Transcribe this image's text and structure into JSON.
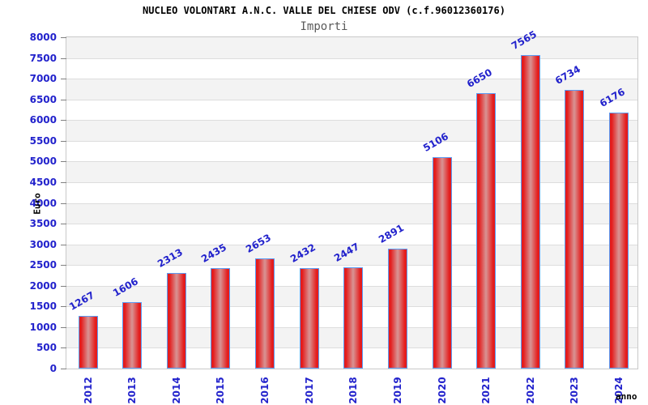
{
  "chart_data": {
    "type": "bar",
    "title": "NUCLEO VOLONTARI A.N.C. VALLE DEL CHIESE ODV (c.f.96012360176)",
    "subtitle": "Importi",
    "xlabel": "anno",
    "ylabel": "Euro",
    "categories": [
      "2012",
      "2013",
      "2014",
      "2015",
      "2016",
      "2017",
      "2018",
      "2019",
      "2020",
      "2021",
      "2022",
      "2023",
      "2024"
    ],
    "values": [
      1267,
      1606,
      2313,
      2435,
      2653,
      2432,
      2447,
      2891,
      5106,
      6650,
      7565,
      6734,
      6176
    ],
    "ylim": [
      0,
      8000
    ],
    "ytick_step": 500,
    "yticks": [
      0,
      500,
      1000,
      1500,
      2000,
      2500,
      3000,
      3500,
      4000,
      4500,
      5000,
      5500,
      6000,
      6500,
      7000,
      7500,
      8000
    ],
    "grid": "horizontal-bands",
    "legend_position": "none",
    "value_labels_rotated": true
  },
  "colors": {
    "title": "#000000",
    "subtitle": "#5a5a5a",
    "tick_label": "#2222cc",
    "value_label": "#2222cc",
    "bar_edge": "#e41c1c",
    "bar_center": "#d89494",
    "bar_border": "#5b9cf5",
    "band": "#f3f3f3",
    "gridline": "#dddddd",
    "plot_border": "#c9c9c9",
    "tick_mark": "#808080",
    "background": "#ffffff"
  }
}
